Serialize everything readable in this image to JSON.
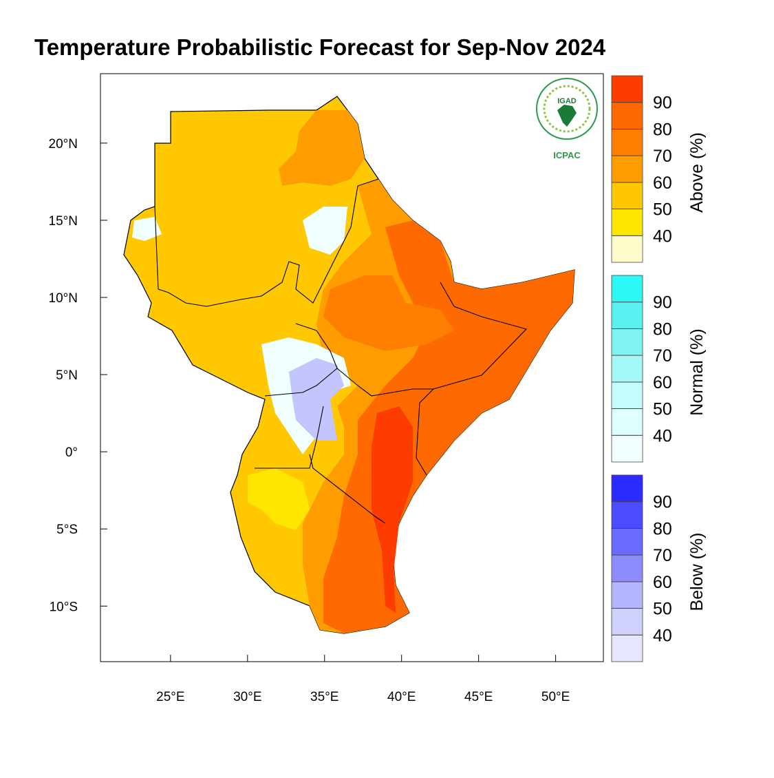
{
  "title": "Temperature Probabilistic Forecast for Sep-Nov 2024",
  "map": {
    "xlim": [
      20.45,
      53.1
    ],
    "ylim": [
      -13.6,
      24.5
    ],
    "xticks": [
      {
        "value": 25,
        "label": "25°E"
      },
      {
        "value": 30,
        "label": "30°E"
      },
      {
        "value": 35,
        "label": "35°E"
      },
      {
        "value": 40,
        "label": "40°E"
      },
      {
        "value": 45,
        "label": "45°E"
      },
      {
        "value": 50,
        "label": "50°E"
      }
    ],
    "yticks": [
      {
        "value": 20,
        "label": "20°N"
      },
      {
        "value": 15,
        "label": "15°N"
      },
      {
        "value": 10,
        "label": "10°N"
      },
      {
        "value": 5,
        "label": "5°N"
      },
      {
        "value": 0,
        "label": "0°"
      },
      {
        "value": -5,
        "label": "5°S"
      },
      {
        "value": -10,
        "label": "10°S"
      }
    ]
  },
  "legend": [
    {
      "title": "Above (%)",
      "ticks": [
        40,
        50,
        60,
        70,
        80,
        90
      ],
      "colors": [
        "#fffccc",
        "#ffe600",
        "#ffc800",
        "#ff9d00",
        "#ff7f00",
        "#ff6a00",
        "#ff3c00"
      ]
    },
    {
      "title": "Normal (%)",
      "ticks": [
        40,
        50,
        60,
        70,
        80,
        90
      ],
      "colors": [
        "#f0ffff",
        "#e0ffff",
        "#c4fcfc",
        "#a4f8f8",
        "#80f4f4",
        "#5af0f0",
        "#2cf8f8"
      ]
    },
    {
      "title": "Below (%)",
      "ticks": [
        40,
        50,
        60,
        70,
        80,
        90
      ],
      "colors": [
        "#e6e6ff",
        "#d0d0ff",
        "#b4b4ff",
        "#8c8cff",
        "#6a6aff",
        "#4c4cff",
        "#2c2cff"
      ]
    }
  ],
  "logo": {
    "name": "IGAD",
    "org": "ICPAC"
  }
}
